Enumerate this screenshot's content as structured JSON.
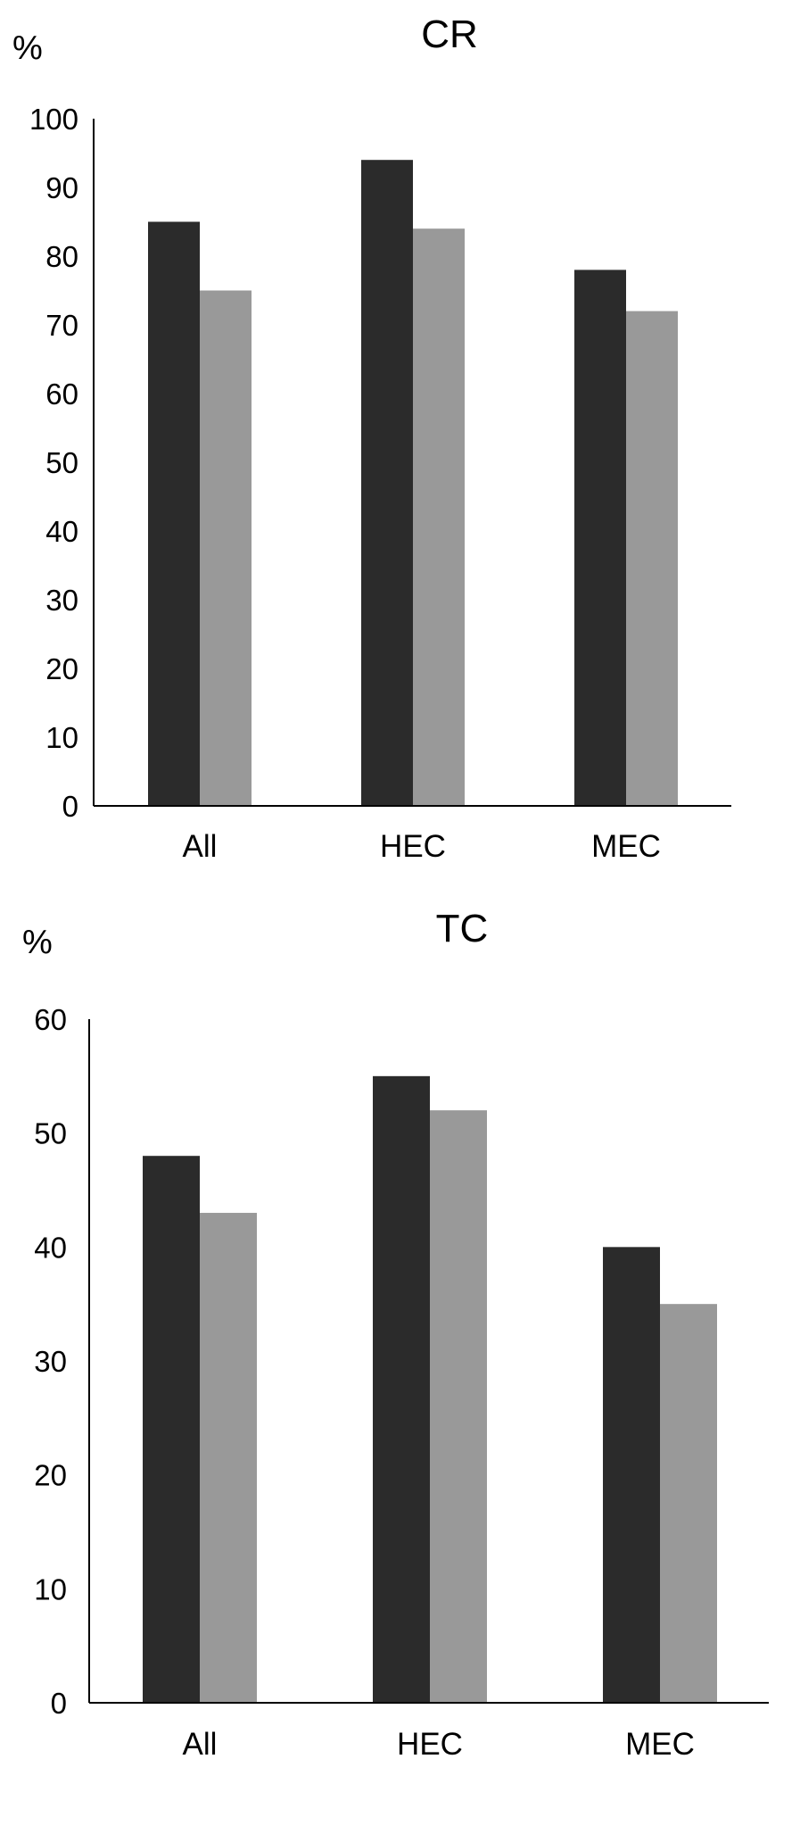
{
  "chart_data": [
    {
      "type": "bar",
      "title": "CR",
      "ylabel": "%",
      "categories": [
        "All",
        "HEC",
        "MEC"
      ],
      "series": [
        {
          "values": [
            85,
            94,
            78
          ],
          "color": "#2b2b2b"
        },
        {
          "values": [
            75,
            84,
            72
          ],
          "color": "#999999"
        }
      ],
      "ylim": [
        0,
        100
      ],
      "yticks": [
        0,
        10,
        20,
        30,
        40,
        50,
        60,
        70,
        80,
        90,
        100
      ],
      "grid": false,
      "legend": "none"
    },
    {
      "type": "bar",
      "title": "TC",
      "ylabel": "%",
      "categories": [
        "All",
        "HEC",
        "MEC"
      ],
      "series": [
        {
          "values": [
            48,
            55,
            40
          ],
          "color": "#2b2b2b"
        },
        {
          "values": [
            43,
            52,
            35
          ],
          "color": "#999999"
        }
      ],
      "ylim": [
        0,
        60
      ],
      "yticks": [
        0,
        10,
        20,
        30,
        40,
        50,
        60
      ],
      "grid": false,
      "legend": "none"
    }
  ]
}
